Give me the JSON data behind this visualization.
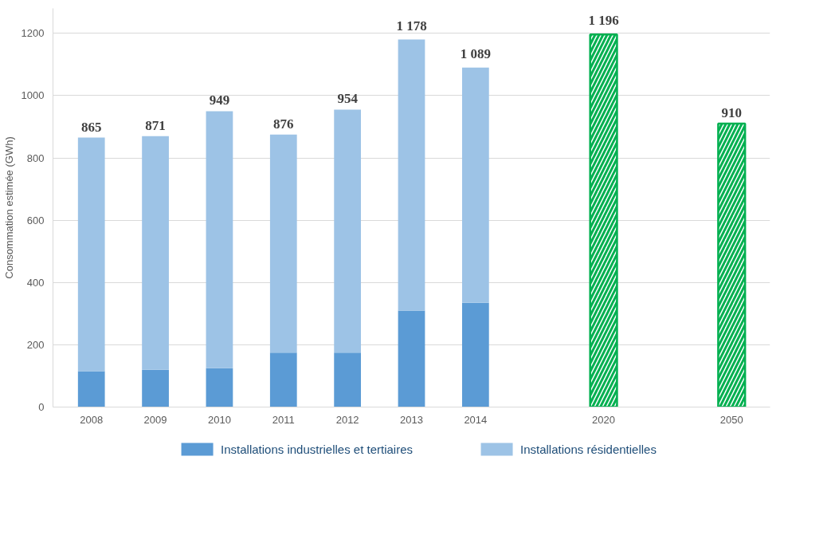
{
  "chart_data": {
    "type": "bar",
    "stacked": true,
    "ylabel": "Consommation estimée (GWh)",
    "categories": [
      "2008",
      "2009",
      "2010",
      "2011",
      "2012",
      "2013",
      "2014",
      null,
      "2020",
      null,
      "2050"
    ],
    "series": [
      {
        "name": "Installations industrielles et tertiaires",
        "color": "#5b9bd5",
        "values": [
          115,
          120,
          125,
          175,
          175,
          310,
          335,
          null,
          null,
          null,
          null
        ]
      },
      {
        "name": "Installations résidentielles",
        "color": "#9dc3e6",
        "values": [
          750,
          750,
          825,
          700,
          780,
          870,
          755,
          null,
          null,
          null,
          null
        ]
      },
      {
        "color": "#00b050",
        "values": [
          null,
          null,
          null,
          null,
          null,
          null,
          null,
          null,
          1196,
          null,
          910
        ]
      }
    ],
    "totals": [
      "865",
      "871",
      "949",
      "876",
      "954",
      "1 178",
      "1 089",
      null,
      "1 196",
      null,
      "910"
    ],
    "ylim": [
      0,
      1280
    ],
    "yticks": [
      0,
      200,
      400,
      600,
      800,
      1000,
      1200
    ],
    "grid": "y",
    "legend": "bottom"
  }
}
